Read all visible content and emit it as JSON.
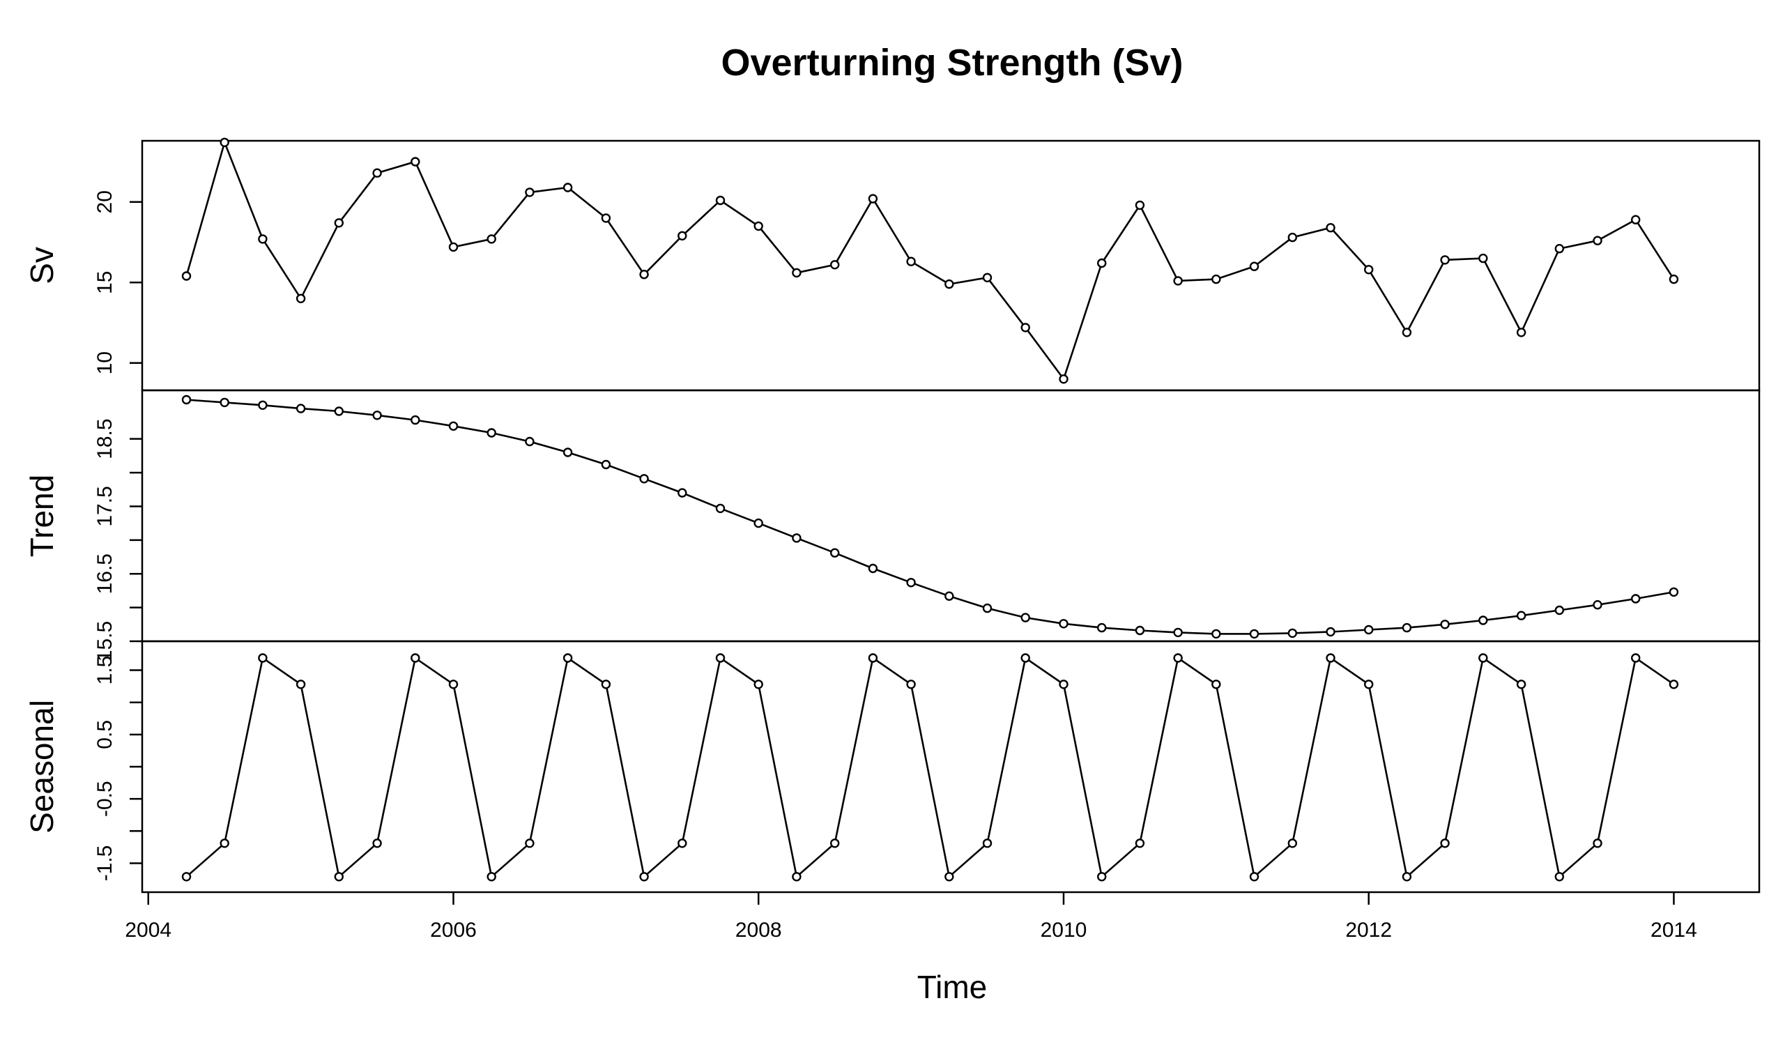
{
  "chart_data": {
    "type": "line",
    "title": "Overturning Strength (Sv)",
    "xlabel": "Time",
    "xlim": [
      2003.96,
      2014.56
    ],
    "x_ticks": [
      2004,
      2006,
      2008,
      2010,
      2012,
      2014
    ],
    "x": [
      2004.25,
      2004.5,
      2004.75,
      2005.0,
      2005.25,
      2005.5,
      2005.75,
      2006.0,
      2006.25,
      2006.5,
      2006.75,
      2007.0,
      2007.25,
      2007.5,
      2007.75,
      2008.0,
      2008.25,
      2008.5,
      2008.75,
      2009.0,
      2009.25,
      2009.5,
      2009.75,
      2010.0,
      2010.25,
      2010.5,
      2010.75,
      2011.0,
      2011.25,
      2011.5,
      2011.75,
      2012.0,
      2012.25,
      2012.5,
      2012.75,
      2013.0,
      2013.25,
      2013.5,
      2013.75,
      2014.0
    ],
    "panels": [
      {
        "ylabel": "Sv",
        "ylim": [
          8.3,
          23.8
        ],
        "y_ticks": [
          10,
          15,
          20
        ],
        "y_tick_labels": [
          "10",
          "15",
          "20"
        ],
        "values": [
          15.4,
          23.7,
          17.7,
          14.0,
          18.7,
          21.8,
          22.5,
          17.2,
          17.7,
          20.6,
          20.9,
          19.0,
          15.5,
          17.9,
          20.1,
          18.5,
          15.6,
          16.1,
          20.2,
          16.3,
          14.9,
          15.3,
          12.2,
          9.0,
          16.2,
          19.8,
          15.1,
          15.2,
          16.0,
          17.8,
          18.4,
          15.8,
          11.9,
          16.4,
          16.5,
          11.9,
          17.1,
          17.6,
          18.9,
          15.2
        ]
      },
      {
        "ylabel": "Trend",
        "ylim": [
          15.5,
          19.22
        ],
        "y_ticks": [
          15.5,
          16.0,
          16.5,
          17.0,
          17.5,
          18.0,
          18.5
        ],
        "y_tick_labels": [
          "15.5",
          "",
          "16.5",
          "",
          "17.5",
          "",
          "18.5"
        ],
        "values": [
          19.08,
          19.04,
          19.0,
          18.95,
          18.91,
          18.85,
          18.78,
          18.69,
          18.59,
          18.46,
          18.3,
          18.12,
          17.91,
          17.7,
          17.47,
          17.25,
          17.03,
          16.81,
          16.58,
          16.37,
          16.17,
          15.99,
          15.85,
          15.76,
          15.7,
          15.66,
          15.63,
          15.61,
          15.61,
          15.62,
          15.64,
          15.67,
          15.7,
          15.75,
          15.81,
          15.88,
          15.96,
          16.04,
          16.13,
          16.23
        ]
      },
      {
        "ylabel": "Seasonal",
        "ylim": [
          -1.95,
          1.95
        ],
        "y_ticks": [
          -1.5,
          -1.0,
          -0.5,
          0.0,
          0.5,
          1.0,
          1.5
        ],
        "y_tick_labels": [
          "-1.5",
          "",
          "-0.5",
          "",
          "0.5",
          "",
          "1.5"
        ],
        "values": [
          -1.71,
          -1.19,
          1.69,
          1.28,
          -1.71,
          -1.19,
          1.69,
          1.28,
          -1.71,
          -1.19,
          1.69,
          1.28,
          -1.71,
          -1.19,
          1.69,
          1.28,
          -1.71,
          -1.19,
          1.69,
          1.28,
          -1.71,
          -1.19,
          1.69,
          1.28,
          -1.71,
          -1.19,
          1.69,
          1.28,
          -1.71,
          -1.19,
          1.69,
          1.28,
          -1.71,
          -1.19,
          1.69,
          1.28,
          -1.71,
          -1.19,
          1.69,
          1.28
        ]
      }
    ],
    "grid": false,
    "legend": "none"
  }
}
